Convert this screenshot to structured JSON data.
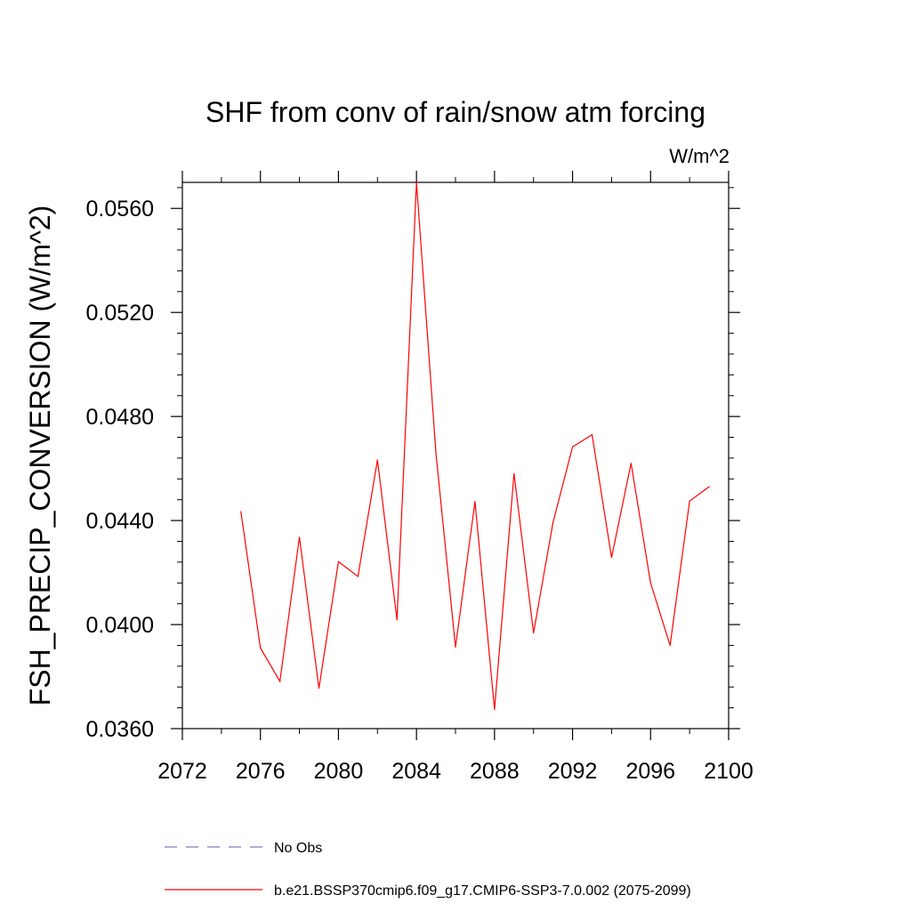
{
  "chart_data": {
    "type": "line",
    "title": "SHF from conv of rain/snow atm forcing",
    "units_label": "W/m^2",
    "xlabel": "",
    "ylabel": "FSH_PRECIP_CONVERSION  (W/m^2)",
    "xlim": [
      2072,
      2100
    ],
    "ylim": [
      0.036,
      0.057
    ],
    "x_ticks": [
      2072,
      2076,
      2080,
      2084,
      2088,
      2092,
      2096,
      2100
    ],
    "x_tick_labels": [
      "2072",
      "2076",
      "2080",
      "2084",
      "2088",
      "2092",
      "2096",
      "2100"
    ],
    "y_ticks": [
      0.036,
      0.04,
      0.044,
      0.048,
      0.052,
      0.056
    ],
    "y_tick_labels": [
      "0.0360",
      "0.0400",
      "0.0440",
      "0.0480",
      "0.0520",
      "0.0560"
    ],
    "legend_position": "bottom",
    "series": [
      {
        "name": "No Obs",
        "color": "#7b7bc7",
        "style": "dashed",
        "x": [],
        "y": []
      },
      {
        "name": "b.e21.BSSP370cmip6.f09_g17.CMIP6-SSP3-7.0.002 (2075-2099)",
        "color": "#ff0000",
        "style": "solid",
        "x": [
          2075,
          2076,
          2077,
          2078,
          2079,
          2080,
          2081,
          2082,
          2083,
          2084,
          2085,
          2086,
          2087,
          2088,
          2089,
          2090,
          2091,
          2092,
          2093,
          2094,
          2095,
          2096,
          2097,
          2098,
          2099
        ],
        "y": [
          0.04434,
          0.0391,
          0.03782,
          0.04336,
          0.03755,
          0.04242,
          0.04185,
          0.04633,
          0.04018,
          0.057,
          0.04657,
          0.03913,
          0.04473,
          0.03674,
          0.0458,
          0.03968,
          0.04393,
          0.04683,
          0.0473,
          0.04258,
          0.0462,
          0.0416,
          0.0392,
          0.04475,
          0.0453
        ]
      }
    ]
  }
}
